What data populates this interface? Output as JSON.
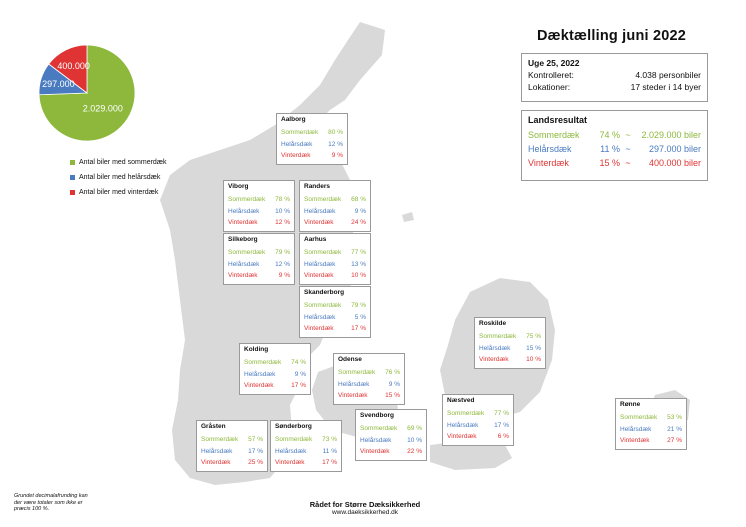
{
  "title": "Dæktælling juni 2022",
  "info": {
    "heading": "Uge 25, 2022",
    "rows": [
      {
        "label": "Kontrolleret:",
        "value": "4.038 personbiler"
      },
      {
        "label": "Lokationer:",
        "value": "17 steder i 14 byer"
      }
    ]
  },
  "landsresultat": {
    "heading": "Landsresultat",
    "rows": [
      {
        "label": "Sommerdæk",
        "pct": "74 %",
        "sep": "~",
        "count": "2.029.000 biler"
      },
      {
        "label": "Helårsdæk",
        "pct": "11 %",
        "sep": "~",
        "count": "297.000 biler"
      },
      {
        "label": "Vinterdæk",
        "pct": "15 %",
        "sep": "~",
        "count": "400.000 biler"
      }
    ]
  },
  "pie": {
    "labels": [
      "2.029.000",
      "297.000",
      "400.000"
    ],
    "values": [
      2029000,
      297000,
      400000
    ]
  },
  "legend": [
    "Antal biler med sommerdæk",
    "Antal biler med helårsdæk",
    "Antal biler med vinterdæk"
  ],
  "colors": {
    "sommer": "#8db83c",
    "helaar": "#4a7bc0",
    "vinter": "#e03434",
    "land": "#d9d9d9"
  },
  "tire_labels": {
    "s": "Sommerdæk",
    "h": "Helårsdæk",
    "v": "Vinterdæk"
  },
  "cities": {
    "aalborg": {
      "name": "Aalborg",
      "s": "80 %",
      "h": "12 %",
      "v": "9 %"
    },
    "viborg": {
      "name": "Viborg",
      "s": "78 %",
      "h": "10 %",
      "v": "12 %"
    },
    "randers": {
      "name": "Randers",
      "s": "68 %",
      "h": "9 %",
      "v": "24 %"
    },
    "silkeborg": {
      "name": "Silkeborg",
      "s": "79 %",
      "h": "12 %",
      "v": "9 %"
    },
    "aarhus": {
      "name": "Aarhus",
      "s": "77 %",
      "h": "13 %",
      "v": "10 %"
    },
    "skanderborg": {
      "name": "Skanderborg",
      "s": "79 %",
      "h": "5 %",
      "v": "17 %"
    },
    "kolding": {
      "name": "Kolding",
      "s": "74 %",
      "h": "9 %",
      "v": "17 %"
    },
    "odense": {
      "name": "Odense",
      "s": "76 %",
      "h": "9 %",
      "v": "15 %"
    },
    "roskilde": {
      "name": "Roskilde",
      "s": "75 %",
      "h": "15 %",
      "v": "10 %"
    },
    "naestved": {
      "name": "Næstved",
      "s": "77 %",
      "h": "17 %",
      "v": "6 %"
    },
    "svendborg": {
      "name": "Svendborg",
      "s": "69 %",
      "h": "10 %",
      "v": "22 %"
    },
    "graasten": {
      "name": "Gråsten",
      "s": "57 %",
      "h": "17 %",
      "v": "25 %"
    },
    "soenderborg": {
      "name": "Sønderborg",
      "s": "73 %",
      "h": "11 %",
      "v": "17 %"
    },
    "roenne": {
      "name": "Rønne",
      "s": "53 %",
      "h": "21 %",
      "v": "27 %"
    }
  },
  "footnote": "Grundet decimalafrunding kan der være totaler som ikke er præcis 100 %.",
  "footer": {
    "org": "Rådet for Større Dæksikkerhed",
    "url": "www.daeksikkerhed.dk"
  }
}
